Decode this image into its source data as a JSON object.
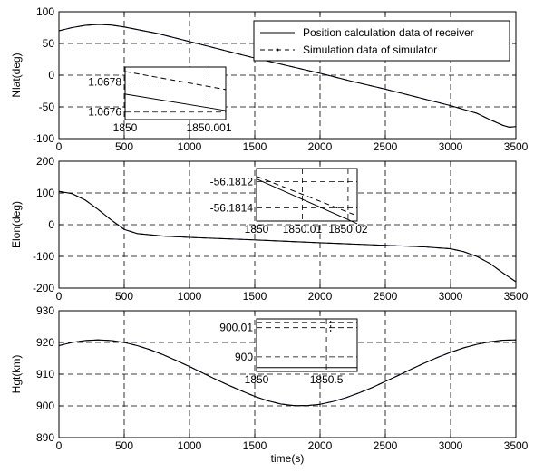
{
  "chart_data": [
    {
      "type": "line",
      "ylabel": "Nlat(deg)",
      "xlabel": "",
      "xlim": [
        0,
        3500
      ],
      "ylim": [
        -100,
        100
      ],
      "xticks": [
        0,
        500,
        1000,
        1500,
        2000,
        2500,
        3000,
        3500
      ],
      "yticks": [
        -100,
        -50,
        0,
        50,
        100
      ],
      "grid": true,
      "legend": {
        "location": "top-right",
        "entries": [
          "Position calculation data of receiver",
          "Simulation data of simulator"
        ]
      },
      "series": [
        {
          "name": "Position calculation data of receiver",
          "color": "#000000",
          "style": "solid",
          "x": [
            0,
            100,
            200,
            300,
            400,
            500,
            750,
            1000,
            1250,
            1500,
            1750,
            2000,
            2250,
            2500,
            2750,
            3000,
            3200,
            3300,
            3400,
            3450,
            3500
          ],
          "y": [
            70,
            75,
            78.5,
            80,
            79,
            76,
            66,
            53,
            40,
            27,
            15,
            3,
            -10,
            -22,
            -35,
            -48,
            -60,
            -70,
            -79,
            -82,
            -81
          ]
        },
        {
          "name": "Simulation data of simulator",
          "color": "#000080",
          "style": "dashed",
          "x": [
            0,
            100,
            200,
            300,
            400,
            500,
            750,
            1000,
            1250,
            1500,
            1750,
            2000,
            2250,
            2500,
            2750,
            3000,
            3200,
            3300,
            3400,
            3450,
            3500
          ],
          "y": [
            70,
            75,
            78.5,
            80,
            79,
            76,
            66,
            53,
            40,
            27,
            15,
            3,
            -10,
            -22,
            -35,
            -48,
            -60,
            -70,
            -79,
            -82,
            -81
          ]
        }
      ],
      "inset": {
        "xlim": [
          1850,
          1850.0012
        ],
        "ylim": [
          1.06755,
          1.0679
        ],
        "xticks": [
          1850,
          1850.001
        ],
        "xtick_labels": [
          "1850",
          "1850.001"
        ],
        "yticks": [
          1.0676,
          1.0678
        ],
        "ytick_labels": [
          "1.0676",
          "1.0678"
        ],
        "series": [
          {
            "name": "Position calculation data of receiver",
            "style": "solid",
            "x": [
              1850,
              1850.0012
            ],
            "y": [
              1.06772,
              1.06761
            ]
          },
          {
            "name": "Simulation data of simulator",
            "style": "dashed",
            "x": [
              1850,
              1850.0012
            ],
            "y": [
              1.06787,
              1.06775
            ]
          }
        ]
      }
    },
    {
      "type": "line",
      "ylabel": "Elon(deg)",
      "xlabel": "",
      "xlim": [
        0,
        3500
      ],
      "ylim": [
        -200,
        200
      ],
      "xticks": [
        0,
        500,
        1000,
        1500,
        2000,
        2500,
        3000,
        3500
      ],
      "yticks": [
        -200,
        -100,
        0,
        100,
        200
      ],
      "grid": true,
      "series": [
        {
          "name": "Position calculation data of receiver",
          "color": "#000000",
          "style": "solid",
          "x": [
            0,
            100,
            200,
            300,
            400,
            500,
            600,
            800,
            1000,
            1500,
            2000,
            2500,
            2800,
            3000,
            3100,
            3200,
            3300,
            3400,
            3500
          ],
          "y": [
            105,
            98,
            78,
            48,
            15,
            -15,
            -28,
            -36,
            -40,
            -48,
            -57,
            -65,
            -70,
            -76,
            -85,
            -100,
            -122,
            -152,
            -180
          ]
        },
        {
          "name": "Simulation data of simulator",
          "color": "#000080",
          "style": "dashed",
          "x": [
            0,
            100,
            200,
            300,
            400,
            500,
            600,
            800,
            1000,
            1500,
            2000,
            2500,
            2800,
            3000,
            3100,
            3200,
            3300,
            3400,
            3500
          ],
          "y": [
            105,
            98,
            78,
            48,
            15,
            -15,
            -28,
            -36,
            -40,
            -48,
            -57,
            -65,
            -70,
            -76,
            -85,
            -100,
            -122,
            -152,
            -180
          ]
        }
      ],
      "inset": {
        "xlim": [
          1850,
          1850.022
        ],
        "ylim": [
          -56.1815,
          -56.1811
        ],
        "xticks": [
          1850,
          1850.01,
          1850.02
        ],
        "xtick_labels": [
          "1850",
          "1850.01",
          "1850.02"
        ],
        "yticks": [
          -56.1814,
          -56.1812
        ],
        "ytick_labels": [
          "-56.1814",
          "-56.1812"
        ],
        "series": [
          {
            "name": "Position calculation data of receiver",
            "style": "solid",
            "x": [
              1850,
              1850.022
            ],
            "y": [
              -56.18118,
              -56.18152
            ]
          },
          {
            "name": "Simulation data of simulator",
            "style": "dashed",
            "x": [
              1850,
              1850.022
            ],
            "y": [
              -56.18116,
              -56.18146
            ]
          }
        ]
      }
    },
    {
      "type": "line",
      "ylabel": "Hgt(km)",
      "xlabel": "time(s)",
      "xlim": [
        0,
        3500
      ],
      "ylim": [
        890,
        930
      ],
      "xticks": [
        0,
        500,
        1000,
        1500,
        2000,
        2500,
        3000,
        3500
      ],
      "yticks": [
        890,
        900,
        910,
        920,
        930
      ],
      "grid": true,
      "series": [
        {
          "name": "Position calculation data of receiver",
          "color": "#000000",
          "style": "solid",
          "x": [
            0,
            100,
            200,
            300,
            400,
            500,
            600,
            700,
            800,
            900,
            1000,
            1100,
            1200,
            1300,
            1400,
            1500,
            1600,
            1700,
            1800,
            1900,
            2000,
            2100,
            2200,
            2300,
            2400,
            2500,
            2600,
            2700,
            2800,
            2900,
            3000,
            3100,
            3200,
            3300,
            3400,
            3500
          ],
          "y": [
            919.0,
            920.0,
            920.6,
            920.8,
            920.6,
            920.0,
            919.0,
            917.7,
            916.1,
            914.3,
            912.4,
            910.4,
            908.4,
            906.5,
            904.7,
            903.0,
            901.6,
            900.6,
            900.1,
            900.1,
            900.5,
            901.4,
            902.6,
            904.1,
            905.8,
            907.7,
            909.6,
            911.6,
            913.5,
            915.3,
            916.9,
            918.3,
            919.4,
            920.2,
            920.7,
            920.8
          ]
        },
        {
          "name": "Simulation data of simulator",
          "color": "#000080",
          "style": "dashed",
          "x": [
            0,
            100,
            200,
            300,
            400,
            500,
            600,
            700,
            800,
            900,
            1000,
            1100,
            1200,
            1300,
            1400,
            1500,
            1600,
            1700,
            1800,
            1900,
            2000,
            2100,
            2200,
            2300,
            2400,
            2500,
            2600,
            2700,
            2800,
            2900,
            3000,
            3100,
            3200,
            3300,
            3400,
            3500
          ],
          "y": [
            919.0,
            920.0,
            920.6,
            920.8,
            920.6,
            920.0,
            919.0,
            917.7,
            916.1,
            914.3,
            912.4,
            910.4,
            908.4,
            906.5,
            904.7,
            903.0,
            901.6,
            900.6,
            900.1,
            900.1,
            900.5,
            901.4,
            902.6,
            904.1,
            905.8,
            907.7,
            909.6,
            911.6,
            913.5,
            915.3,
            916.9,
            918.3,
            919.4,
            920.2,
            920.7,
            920.8
          ]
        }
      ],
      "inset": {
        "xlim": [
          1850,
          1850.72
        ],
        "ylim": [
          899.995,
          900.013
        ],
        "xticks": [
          1850,
          1850.5
        ],
        "xtick_labels": [
          "1850",
          "1850.5"
        ],
        "yticks": [
          900,
          900.01
        ],
        "ytick_labels": [
          "900",
          "900.01"
        ],
        "series": [
          {
            "name": "Position calculation data of receiver",
            "style": "solid",
            "x": [
              1850,
              1850.72
            ],
            "y": [
              899.9963,
              899.9963
            ]
          },
          {
            "name": "Simulation data of simulator",
            "style": "dashed",
            "x": [
              1850,
              1850.72
            ],
            "y": [
              900.0118,
              900.0118
            ]
          }
        ],
        "vertical_dash_x": 1850.53
      }
    }
  ]
}
